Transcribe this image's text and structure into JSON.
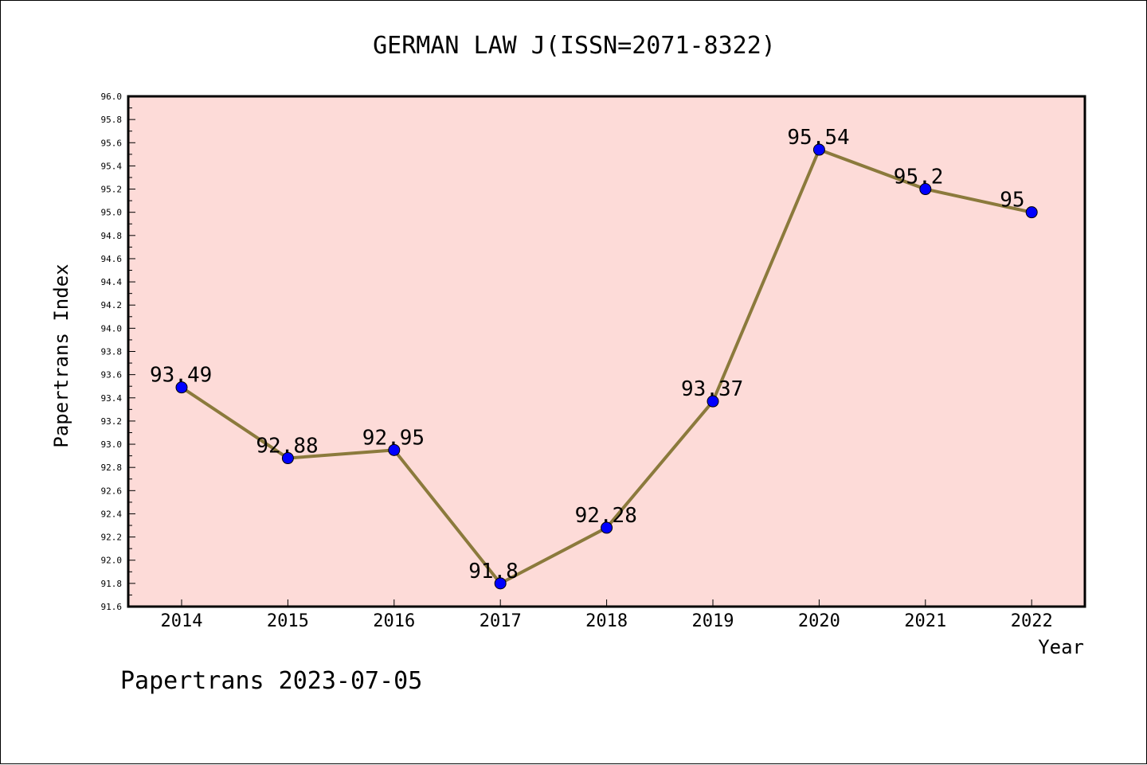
{
  "chart_data": {
    "type": "line",
    "title": "GERMAN LAW J(ISSN=2071-8322)",
    "xlabel": "Year",
    "ylabel": "Papertrans Index",
    "x": [
      "2014",
      "2015",
      "2016",
      "2017",
      "2018",
      "2019",
      "2020",
      "2021",
      "2022"
    ],
    "series": [
      {
        "values": [
          93.49,
          92.88,
          92.95,
          91.8,
          92.28,
          93.37,
          95.54,
          95.2,
          95
        ],
        "labels": [
          "93.49",
          "92.88",
          "92.95",
          "91.8",
          "92.28",
          "93.37",
          "95.54",
          "95.2",
          "95"
        ]
      }
    ],
    "ylim": [
      91.6,
      96.0
    ],
    "yticks": [
      "91.6",
      "91.8",
      "92.0",
      "92.2",
      "92.4",
      "92.6",
      "92.8",
      "93.0",
      "93.2",
      "93.4",
      "93.6",
      "93.8",
      "94.0",
      "94.2",
      "94.4",
      "94.6",
      "94.8",
      "95.0",
      "95.2",
      "95.4",
      "95.6",
      "95.8",
      "96.0"
    ],
    "grid": false,
    "legend": "none",
    "colors": {
      "plot_background": "#fddbd8",
      "line": "#8b7a3c",
      "marker": "#0000ff"
    }
  },
  "footer": "Papertrans 2023-07-05"
}
